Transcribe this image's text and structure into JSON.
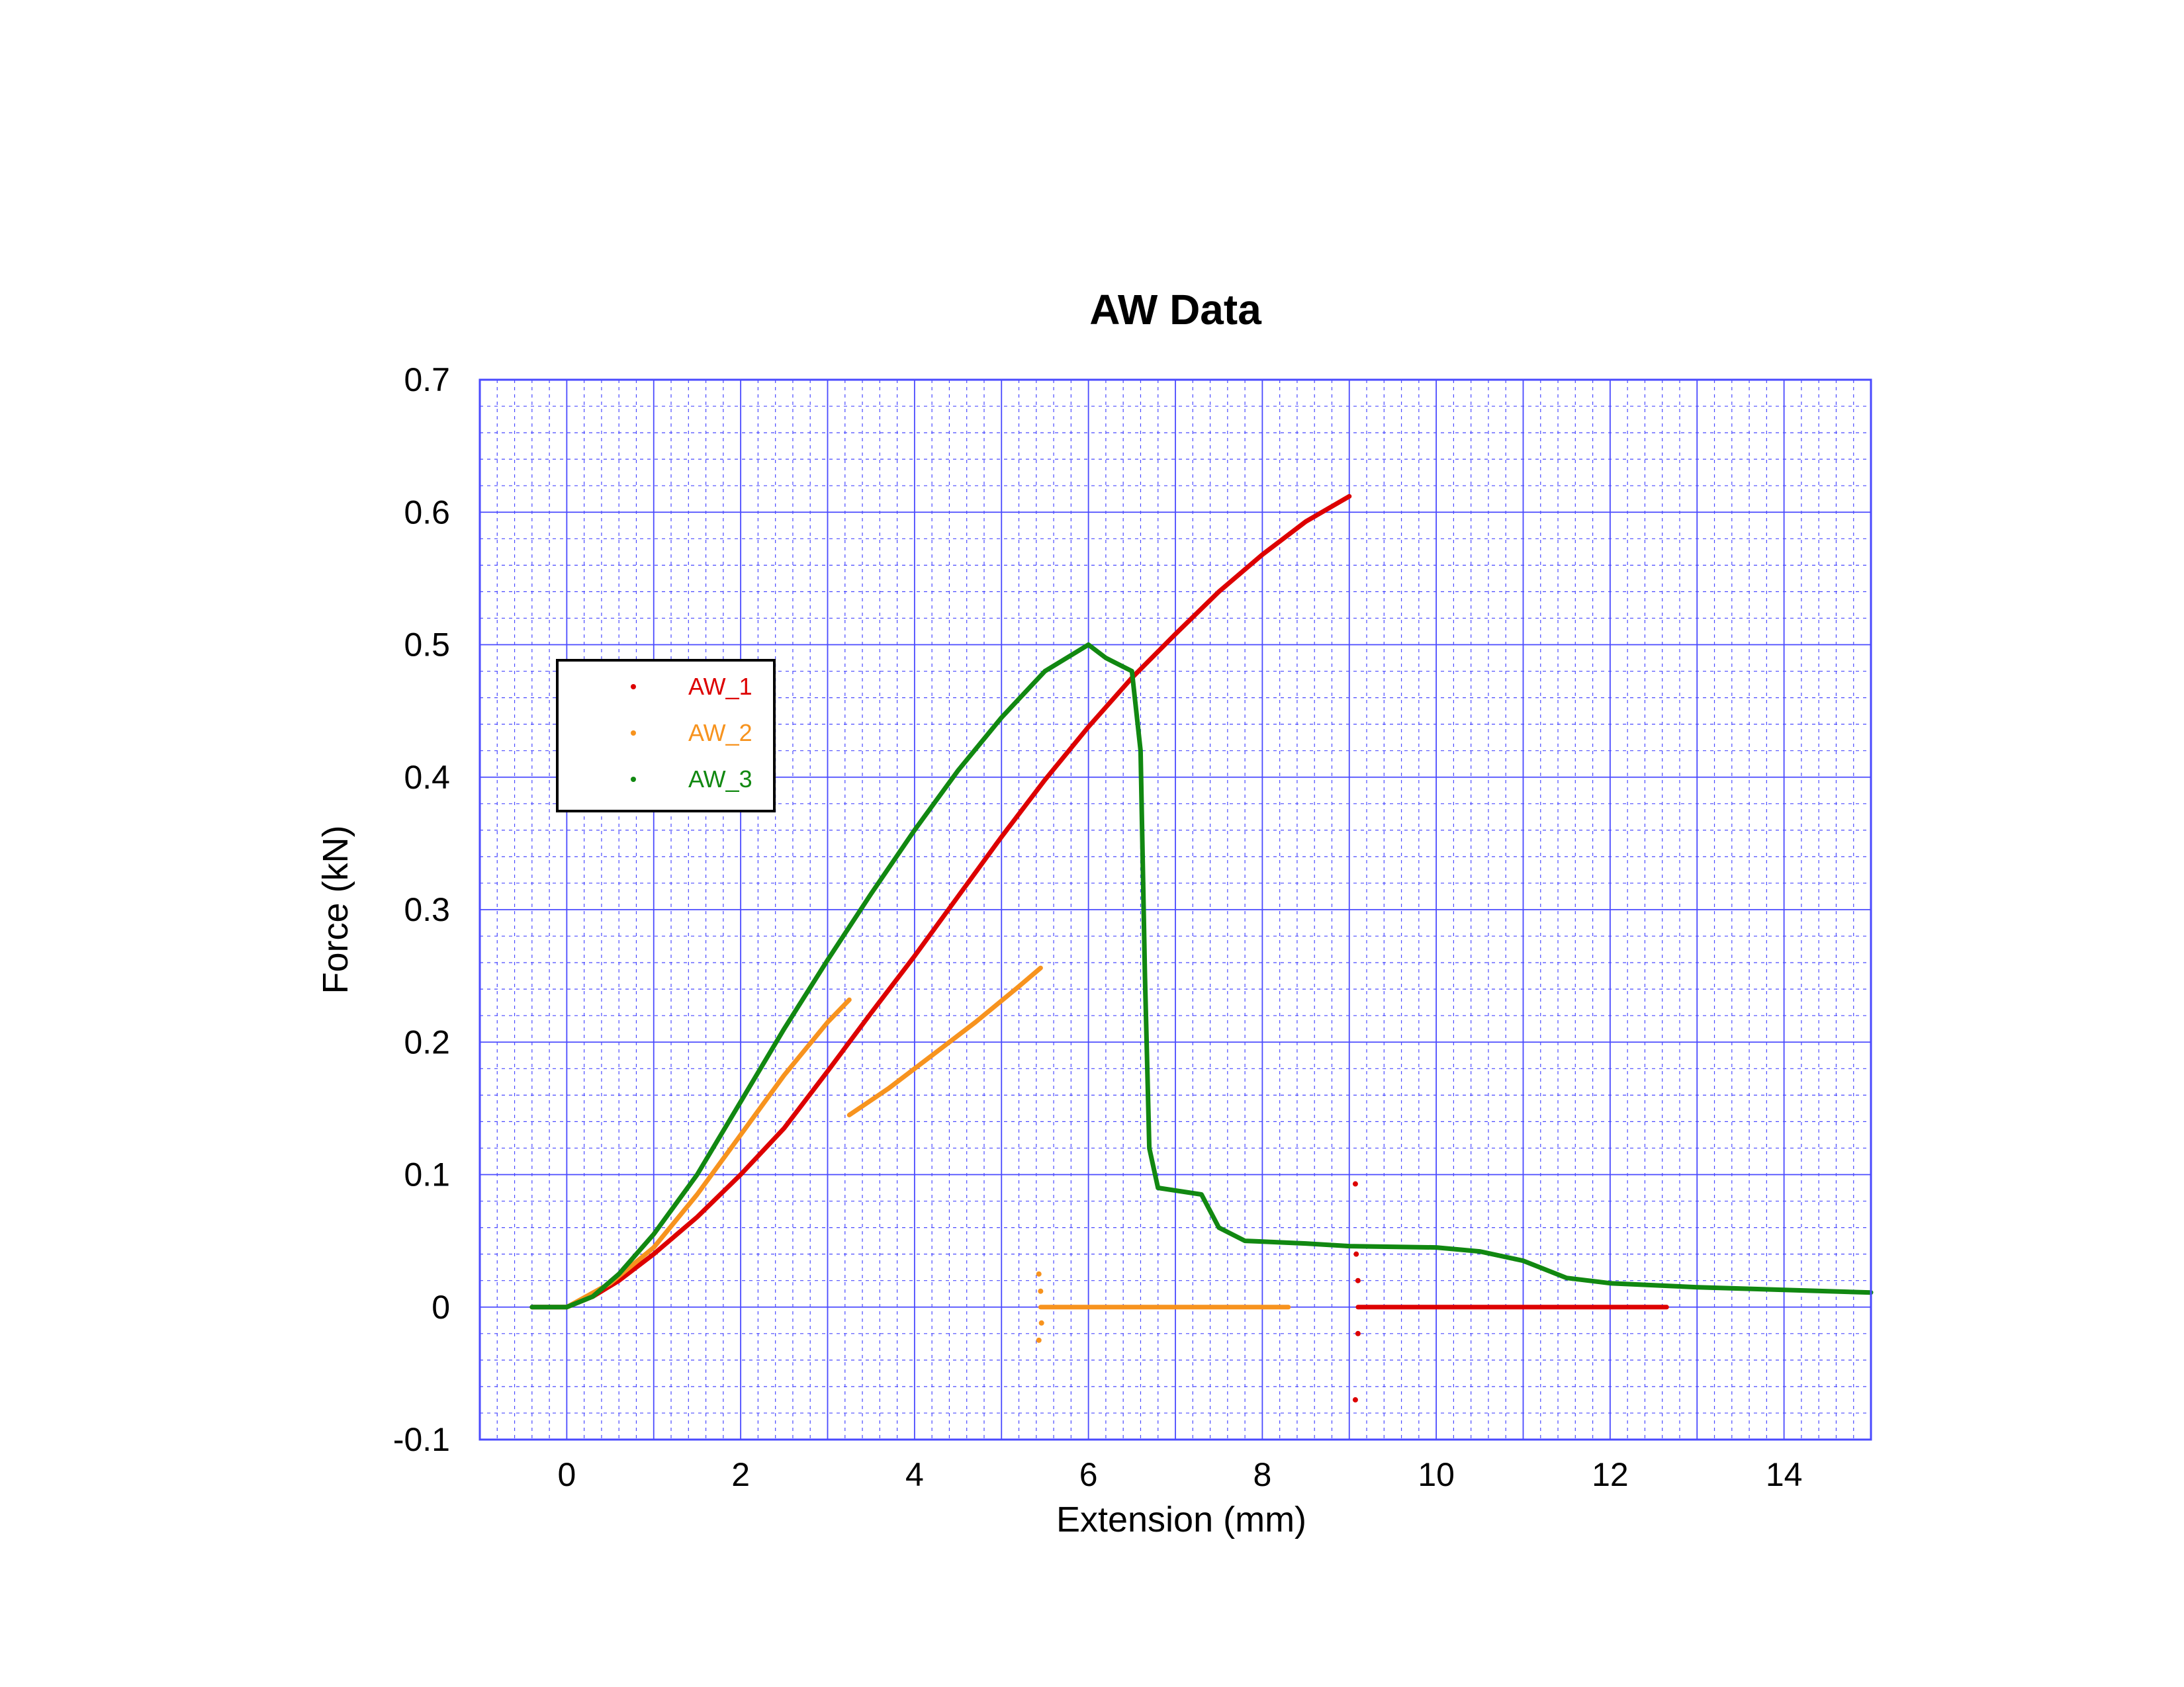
{
  "chart_data": {
    "type": "scatter",
    "title": "AW Data",
    "xlabel": "Extension (mm)",
    "ylabel": "Force (kN)",
    "xlim": [
      -1,
      15
    ],
    "ylim": [
      -0.1,
      0.7
    ],
    "xticks": [
      "0",
      "2",
      "4",
      "6",
      "8",
      "10",
      "12",
      "14"
    ],
    "yticks": [
      "-0.1",
      "0",
      "0.1",
      "0.2",
      "0.3",
      "0.4",
      "0.5",
      "0.6",
      "0.7"
    ],
    "grid": true,
    "legend_position": "upper-left",
    "series": [
      {
        "name": "AW_1",
        "color": "#dd0000",
        "segments": [
          [
            [
              -0.4,
              0.0
            ],
            [
              0.0,
              0.0
            ],
            [
              0.3,
              0.008
            ],
            [
              0.6,
              0.02
            ],
            [
              1.0,
              0.04
            ],
            [
              1.5,
              0.068
            ],
            [
              2.0,
              0.1
            ],
            [
              2.5,
              0.135
            ],
            [
              3.0,
              0.178
            ],
            [
              3.5,
              0.222
            ],
            [
              4.0,
              0.265
            ],
            [
              4.5,
              0.31
            ],
            [
              5.0,
              0.355
            ],
            [
              5.5,
              0.398
            ],
            [
              6.0,
              0.438
            ],
            [
              6.5,
              0.475
            ],
            [
              7.0,
              0.508
            ],
            [
              7.5,
              0.54
            ],
            [
              8.0,
              0.568
            ],
            [
              8.5,
              0.593
            ],
            [
              9.0,
              0.612
            ]
          ],
          [
            [
              9.1,
              0.0
            ],
            [
              9.3,
              0.0
            ],
            [
              10.0,
              0.0
            ],
            [
              11.0,
              0.0
            ],
            [
              12.0,
              0.0
            ],
            [
              12.65,
              0.0
            ]
          ]
        ],
        "outliers": [
          [
            9.07,
            0.093
          ],
          [
            9.07,
            -0.07
          ],
          [
            9.08,
            0.04
          ],
          [
            9.1,
            -0.02
          ],
          [
            9.1,
            0.02
          ]
        ]
      },
      {
        "name": "AW_2",
        "color": "#f7931e",
        "segments": [
          [
            [
              0.0,
              0.0
            ],
            [
              0.5,
              0.018
            ],
            [
              1.0,
              0.045
            ],
            [
              1.5,
              0.085
            ],
            [
              2.0,
              0.13
            ],
            [
              2.5,
              0.175
            ],
            [
              3.0,
              0.215
            ],
            [
              3.25,
              0.232
            ]
          ],
          [
            [
              3.25,
              0.145
            ],
            [
              3.7,
              0.165
            ],
            [
              4.2,
              0.19
            ],
            [
              4.7,
              0.215
            ],
            [
              5.2,
              0.242
            ],
            [
              5.45,
              0.256
            ]
          ],
          [
            [
              5.45,
              0.0
            ],
            [
              6.0,
              0.0
            ],
            [
              7.0,
              0.0
            ],
            [
              8.0,
              0.0
            ],
            [
              8.3,
              0.0
            ]
          ]
        ],
        "outliers": [
          [
            5.43,
            0.025
          ],
          [
            5.43,
            -0.025
          ],
          [
            5.45,
            0.012
          ],
          [
            5.46,
            -0.012
          ]
        ]
      },
      {
        "name": "AW_3",
        "color": "#118811",
        "segments": [
          [
            [
              -0.4,
              0.0
            ],
            [
              0.0,
              0.0
            ],
            [
              0.3,
              0.008
            ],
            [
              0.6,
              0.025
            ],
            [
              1.0,
              0.055
            ],
            [
              1.5,
              0.1
            ],
            [
              2.0,
              0.155
            ],
            [
              2.5,
              0.21
            ],
            [
              3.0,
              0.262
            ],
            [
              3.5,
              0.312
            ],
            [
              4.0,
              0.36
            ],
            [
              4.5,
              0.405
            ],
            [
              5.0,
              0.445
            ],
            [
              5.5,
              0.48
            ],
            [
              6.0,
              0.5
            ],
            [
              6.2,
              0.49
            ],
            [
              6.5,
              0.48
            ],
            [
              6.6,
              0.42
            ],
            [
              6.65,
              0.25
            ],
            [
              6.7,
              0.12
            ],
            [
              6.8,
              0.09
            ],
            [
              7.0,
              0.088
            ],
            [
              7.3,
              0.085
            ],
            [
              7.5,
              0.06
            ],
            [
              7.8,
              0.05
            ],
            [
              8.5,
              0.048
            ],
            [
              9.0,
              0.046
            ],
            [
              10.0,
              0.045
            ],
            [
              10.5,
              0.042
            ],
            [
              11.0,
              0.035
            ],
            [
              11.5,
              0.022
            ],
            [
              12.0,
              0.018
            ],
            [
              13.0,
              0.015
            ],
            [
              14.0,
              0.013
            ],
            [
              15.0,
              0.011
            ]
          ]
        ],
        "outliers": []
      }
    ]
  }
}
